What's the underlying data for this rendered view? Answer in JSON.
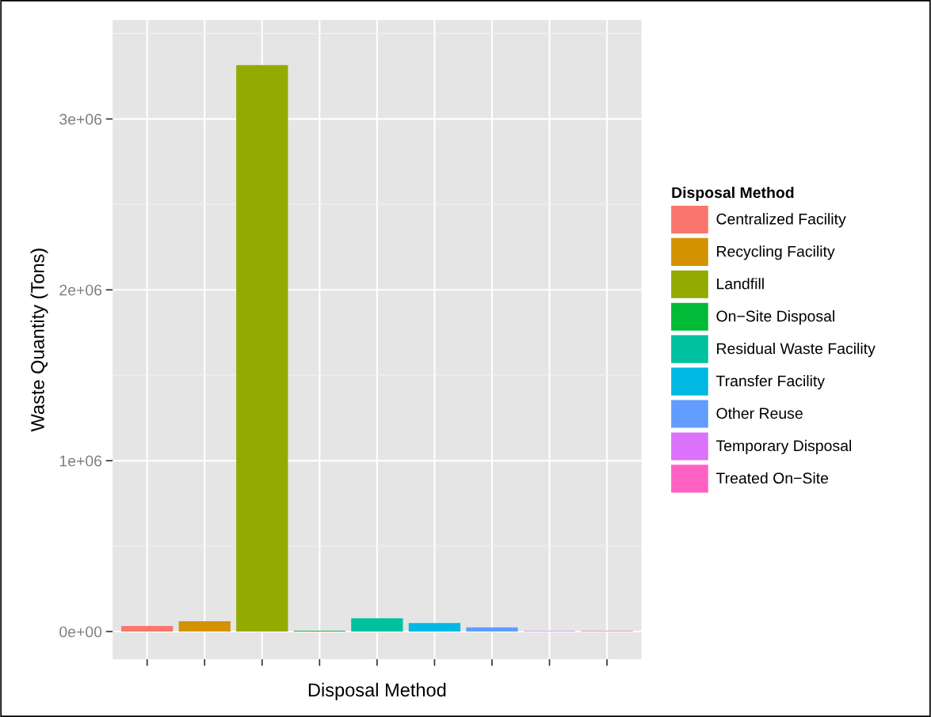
{
  "chart_data": {
    "type": "bar",
    "xlabel": "Disposal Method",
    "ylabel": "Waste Quantity (Tons)",
    "legend_title": "Disposal Method",
    "categories": [
      null,
      null,
      null,
      null,
      null,
      null,
      null,
      null,
      null
    ],
    "series": [
      {
        "name": "Centralized Facility",
        "color": "#f8766d",
        "values": [
          32000,
          null,
          null,
          null,
          null,
          null,
          null,
          null,
          null
        ]
      },
      {
        "name": "Recycling Facility",
        "color": "#d39200",
        "values": [
          null,
          60000,
          null,
          null,
          null,
          null,
          null,
          null,
          null
        ]
      },
      {
        "name": "Landfill",
        "color": "#93aa00",
        "values": [
          null,
          null,
          3315000,
          null,
          null,
          null,
          null,
          null,
          null
        ]
      },
      {
        "name": "On−Site Disposal",
        "color": "#00ba38",
        "values": [
          null,
          null,
          null,
          5000,
          null,
          null,
          null,
          null,
          null
        ]
      },
      {
        "name": "Residual Waste Facility",
        "color": "#00c19f",
        "values": [
          null,
          null,
          null,
          null,
          78000,
          null,
          null,
          null,
          null
        ]
      },
      {
        "name": "Transfer Facility",
        "color": "#00b9e3",
        "values": [
          null,
          null,
          null,
          null,
          null,
          50000,
          null,
          null,
          null
        ]
      },
      {
        "name": "Other Reuse",
        "color": "#619cff",
        "values": [
          null,
          null,
          null,
          null,
          null,
          null,
          24000,
          null,
          null
        ]
      },
      {
        "name": "Temporary Disposal",
        "color": "#db72fb",
        "values": [
          null,
          null,
          null,
          null,
          null,
          null,
          null,
          4000,
          null
        ]
      },
      {
        "name": "Treated On−Site",
        "color": "#ff61c3",
        "values": [
          null,
          null,
          null,
          null,
          null,
          null,
          null,
          null,
          4000
        ]
      }
    ],
    "ylim": [
      -162000,
      3579000
    ],
    "yticks": [
      {
        "value": 0,
        "label": "0e+00"
      },
      {
        "value": 1000000,
        "label": "1e+06"
      },
      {
        "value": 2000000,
        "label": "2e+06"
      },
      {
        "value": 3000000,
        "label": "3e+06"
      }
    ],
    "grid": true,
    "legend": "right"
  }
}
